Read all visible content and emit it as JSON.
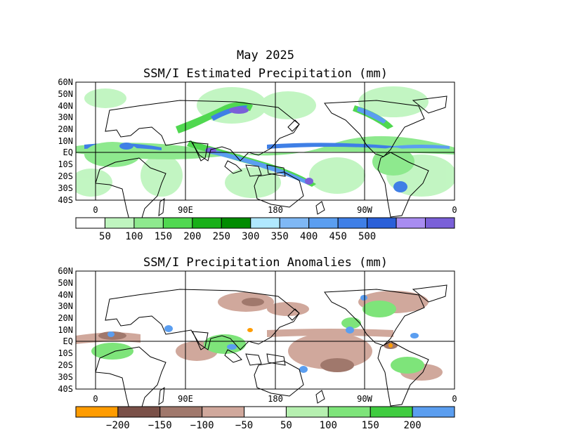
{
  "header": {
    "date_title": "May 2025"
  },
  "maps": [
    {
      "title": "SSM/I Estimated Precipitation (mm)",
      "lat_labels": [
        "60N",
        "50N",
        "40N",
        "30N",
        "20N",
        "10N",
        "EQ",
        "10S",
        "20S",
        "30S",
        "40S"
      ],
      "lon_labels": [
        "0",
        "90E",
        "180",
        "90W",
        "0"
      ],
      "colorbar": {
        "colors": [
          "#ffffff",
          "#bff5bf",
          "#8ee98e",
          "#50d850",
          "#18b018",
          "#008c00",
          "#b0e8ff",
          "#7fb8f5",
          "#5b9ef0",
          "#3f7fe6",
          "#2a5fd8",
          "#a88cf0",
          "#7a60d8"
        ],
        "labels": [
          "50",
          "100",
          "150",
          "200",
          "250",
          "300",
          "350",
          "400",
          "450",
          "500"
        ]
      }
    },
    {
      "title": "SSM/I Precipitation Anomalies (mm)",
      "lat_labels": [
        "60N",
        "50N",
        "40N",
        "30N",
        "20N",
        "10N",
        "EQ",
        "10S",
        "20S",
        "30S",
        "40S"
      ],
      "lon_labels": [
        "0",
        "90E",
        "180",
        "90W",
        "0"
      ],
      "colorbar": {
        "colors": [
          "#ff9c00",
          "#7a5048",
          "#a0786c",
          "#d0a89c",
          "#ffffff",
          "#b6f0b0",
          "#7ee47a",
          "#40cc40",
          "#5b9ef0"
        ],
        "labels": [
          "−200",
          "−150",
          "−100",
          "−50",
          "50",
          "100",
          "150",
          "200"
        ]
      }
    }
  ]
}
